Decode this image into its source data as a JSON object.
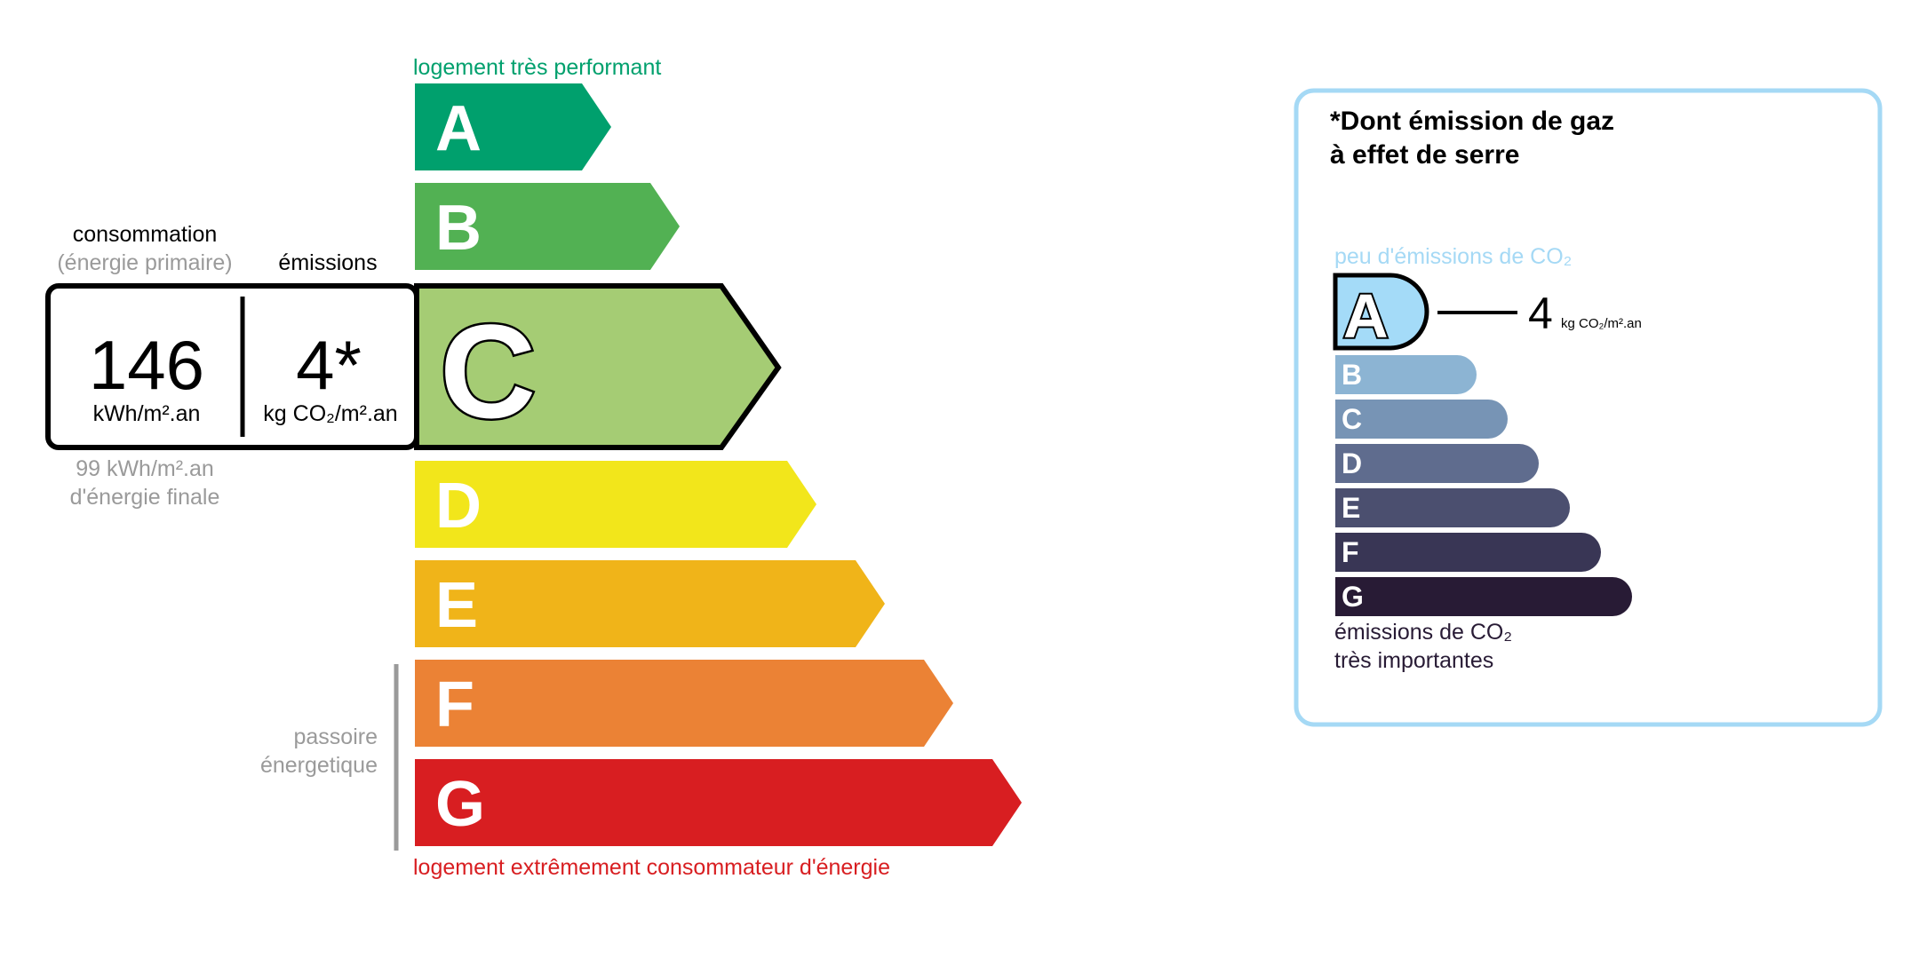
{
  "energy_scale": {
    "top_label": "logement très performant",
    "bottom_label": "logement extrêmement consommateur d'énergie",
    "classes": [
      {
        "letter": "A",
        "color": "#00a06d"
      },
      {
        "letter": "B",
        "color": "#52b153"
      },
      {
        "letter": "C",
        "color": "#a5cc74"
      },
      {
        "letter": "D",
        "color": "#f2e61b"
      },
      {
        "letter": "E",
        "color": "#f0b419"
      },
      {
        "letter": "F",
        "color": "#eb8235"
      },
      {
        "letter": "G",
        "color": "#d81e21"
      }
    ],
    "current_class": "C",
    "passoire_line1": "passoire",
    "passoire_line2": "énergetique",
    "top_color": "#00a06d",
    "bottom_color": "#d81e21"
  },
  "summary": {
    "consumption_header": "consommation",
    "consumption_subheader": "(énergie primaire)",
    "emissions_header": "émissions",
    "consumption_value": "146",
    "consumption_unit": "kWh/m².an",
    "emissions_value": "4*",
    "emissions_unit": "kg CO₂/m².an",
    "final_energy_line1": "99 kWh/m².an",
    "final_energy_line2": "d'énergie finale"
  },
  "ges_panel": {
    "title_line1": "*Dont émission de gaz",
    "title_line2": "à effet de serre",
    "top_label": "peu d'émissions de CO₂",
    "bottom_line1": "émissions de CO₂",
    "bottom_line2": "très importantes",
    "current_class": "A",
    "value": "4",
    "unit": "kg CO₂/m².an",
    "border_color": "#a5d9f5",
    "classes": [
      {
        "letter": "A",
        "color": "#a4dbf8"
      },
      {
        "letter": "B",
        "color": "#8cb4d3"
      },
      {
        "letter": "C",
        "color": "#7794b5"
      },
      {
        "letter": "D",
        "color": "#5f6c8e"
      },
      {
        "letter": "E",
        "color": "#4b4f6f"
      },
      {
        "letter": "F",
        "color": "#393655"
      },
      {
        "letter": "G",
        "color": "#281b35"
      }
    ]
  }
}
